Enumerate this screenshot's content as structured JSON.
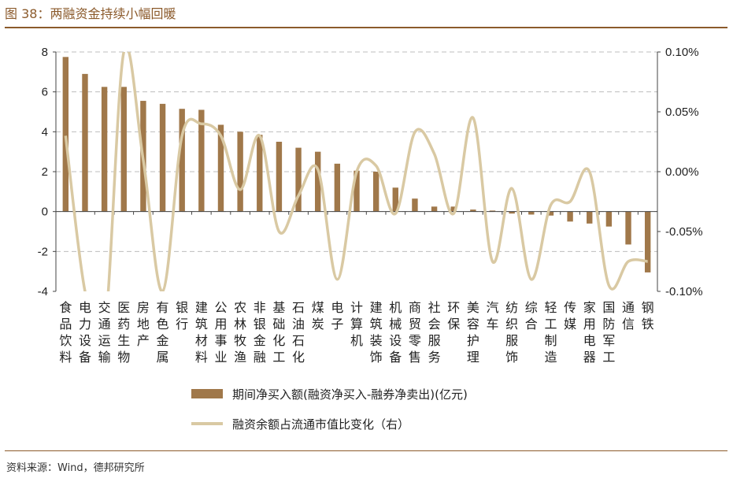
{
  "title": "图 38：两融资金持续小幅回暖",
  "source": "资料来源：Wind，德邦研究所",
  "colors": {
    "bar": "#a0784a",
    "line": "#d9c9a3",
    "title": "#8b5a2b"
  },
  "chart_data": {
    "type": "bar+line",
    "categories": [
      "食品饮料",
      "电力设备",
      "交通运输",
      "医药生物",
      "房地产",
      "有色金属",
      "银行",
      "建筑材料",
      "公用事业",
      "农林牧渔",
      "非银金融",
      "基础化工",
      "石油石化",
      "煤炭",
      "电子",
      "计算机",
      "建筑装饰",
      "机械设备",
      "商贸零售",
      "社会服务",
      "环保",
      "美容护理",
      "汽车",
      "纺织服饰",
      "综合",
      "轻工制造",
      "传媒",
      "家用电器",
      "国防军工",
      "通信",
      "钢铁"
    ],
    "series": [
      {
        "name": "期间净买入额(融资净买入-融券净卖出)(亿元)",
        "axis": "left",
        "values": [
          7.75,
          6.9,
          6.25,
          6.25,
          5.55,
          5.4,
          5.15,
          5.1,
          4.35,
          4.0,
          3.85,
          3.5,
          3.2,
          3.0,
          2.4,
          2.05,
          2.0,
          1.2,
          0.65,
          0.25,
          0.25,
          0.1,
          0.05,
          -0.1,
          -0.15,
          -0.2,
          -0.5,
          -0.6,
          -0.75,
          -1.65,
          -3.05
        ]
      },
      {
        "name": "融资余额占流通市值比变化（右）",
        "axis": "right",
        "values": [
          0.03,
          -0.1,
          -0.135,
          0.1,
          0.01,
          -0.1,
          0.03,
          0.04,
          0.03,
          -0.015,
          0.03,
          -0.05,
          -0.02,
          0.002,
          -0.09,
          0.0,
          0.005,
          -0.035,
          0.033,
          0.015,
          -0.035,
          0.045,
          -0.075,
          -0.014,
          -0.09,
          -0.028,
          -0.025,
          0.0,
          -0.095,
          -0.075,
          -0.075
        ]
      }
    ],
    "left_axis": {
      "ylim": [
        -4,
        8
      ],
      "ticks": [
        -4,
        -2,
        0,
        2,
        4,
        6,
        8
      ],
      "tick_labels": [
        "-4",
        "-2",
        "0",
        "2",
        "4",
        "6",
        "8"
      ]
    },
    "right_axis": {
      "ylim": [
        -0.1,
        0.1
      ],
      "ticks": [
        -0.1,
        -0.05,
        0,
        0.05,
        0.1
      ],
      "tick_labels": [
        "-0.10%",
        "-0.05%",
        "0.00%",
        "0.05%",
        "0.10%"
      ]
    },
    "grid": "horizontal dashed",
    "legend": "bottom"
  }
}
